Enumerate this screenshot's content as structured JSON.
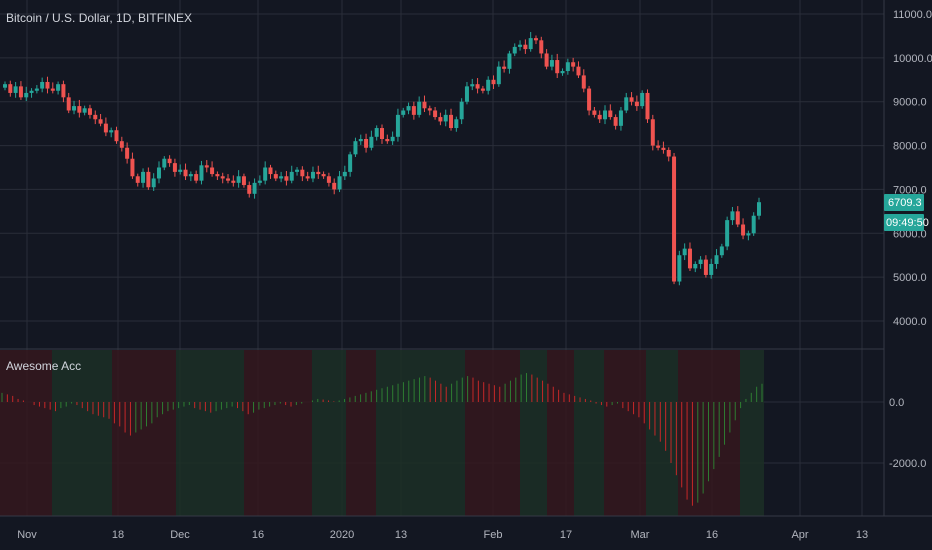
{
  "chart_title": "Bitcoin / U.S. Dollar, 1D, BITFINEX",
  "indicator_title": "Awesome Acc",
  "colors": {
    "background": "#131722",
    "grid": "#2a2e39",
    "up": "#26a69a",
    "down": "#ef5350",
    "text": "#b2b5be",
    "tag_bg": "#26a69a",
    "bar_green": "#2e7d32",
    "bar_red": "#c62828",
    "band_green": "#1c2f26",
    "band_red": "#35181d"
  },
  "price_tag": {
    "price": "6709.3",
    "countdown": "09:49:50"
  },
  "chart_data": [
    {
      "type": "candlestick",
      "title": "Bitcoin / U.S. Dollar, 1D, BITFINEX",
      "y_ticks": [
        "11000.0",
        "10000.0",
        "9000.0",
        "8000.0",
        "7000.0",
        "6000.0",
        "5000.0",
        "4000.0"
      ],
      "x_ticks": [
        "Nov",
        "18",
        "Dec",
        "16",
        "2020",
        "13",
        "Feb",
        "17",
        "Mar",
        "16",
        "Apr",
        "13"
      ],
      "ylim": [
        3800,
        11100
      ],
      "x_start": "2019-10-27",
      "close": [
        9400,
        9200,
        9350,
        9100,
        9200,
        9250,
        9300,
        9450,
        9300,
        9250,
        9400,
        9100,
        8800,
        8900,
        8750,
        8850,
        8700,
        8600,
        8500,
        8300,
        8350,
        8100,
        7950,
        7700,
        7300,
        7150,
        7400,
        7050,
        7250,
        7500,
        7700,
        7600,
        7400,
        7450,
        7300,
        7350,
        7200,
        7550,
        7500,
        7350,
        7300,
        7250,
        7200,
        7150,
        7300,
        7100,
        6900,
        7150,
        7200,
        7500,
        7350,
        7250,
        7300,
        7200,
        7400,
        7450,
        7300,
        7250,
        7400,
        7350,
        7300,
        7150,
        7000,
        7300,
        7400,
        7800,
        8100,
        8150,
        7950,
        8200,
        8400,
        8150,
        8100,
        8200,
        8700,
        8800,
        8900,
        8700,
        9000,
        8850,
        8800,
        8650,
        8550,
        8700,
        8400,
        8600,
        9000,
        9350,
        9400,
        9300,
        9250,
        9500,
        9400,
        9800,
        9750,
        10100,
        10250,
        10300,
        10200,
        10450,
        10400,
        10100,
        9800,
        9950,
        9650,
        9700,
        9900,
        9800,
        9600,
        9300,
        8800,
        8700,
        8600,
        8800,
        8650,
        8450,
        8800,
        9100,
        9000,
        8900,
        9200,
        8600,
        8000,
        7950,
        7900,
        7750,
        4900,
        5500,
        5650,
        5200,
        5300,
        5400,
        5050,
        5300,
        5500,
        5700,
        6300,
        6500,
        6200,
        5950,
        6000,
        6400,
        6709
      ],
      "ohlc_source": "estimated from candles"
    },
    {
      "type": "bar",
      "title": "Awesome Acc",
      "y_ticks": [
        "0.0",
        "-2000.0"
      ],
      "ylim": [
        -3900,
        1200
      ],
      "values": [
        300,
        250,
        200,
        100,
        50,
        0,
        -100,
        -150,
        -200,
        -250,
        -300,
        -200,
        -150,
        -50,
        -100,
        -200,
        -300,
        -400,
        -450,
        -500,
        -550,
        -700,
        -800,
        -1000,
        -1100,
        -1000,
        -900,
        -800,
        -700,
        -500,
        -400,
        -300,
        -250,
        -200,
        -150,
        -100,
        -200,
        -250,
        -300,
        -350,
        -300,
        -250,
        -200,
        -150,
        -200,
        -300,
        -400,
        -350,
        -250,
        -200,
        -150,
        -100,
        -50,
        -100,
        -150,
        -100,
        -50,
        0,
        50,
        100,
        80,
        50,
        20,
        50,
        100,
        150,
        200,
        250,
        300,
        350,
        400,
        450,
        500,
        550,
        600,
        650,
        700,
        750,
        800,
        850,
        800,
        700,
        600,
        500,
        600,
        700,
        800,
        850,
        800,
        700,
        650,
        600,
        550,
        500,
        600,
        700,
        800,
        900,
        950,
        900,
        800,
        700,
        600,
        500,
        400,
        300,
        250,
        200,
        150,
        100,
        50,
        -50,
        -100,
        -150,
        -100,
        -50,
        -200,
        -300,
        -400,
        -500,
        -700,
        -900,
        -1100,
        -1300,
        -1600,
        -2000,
        -2400,
        -2800,
        -3200,
        -3400,
        -3300,
        -3000,
        -2600,
        -2200,
        -1800,
        -1400,
        -1000,
        -600,
        -200,
        100,
        300,
        500,
        600
      ],
      "band_colors": "estimated green/red zones"
    }
  ]
}
